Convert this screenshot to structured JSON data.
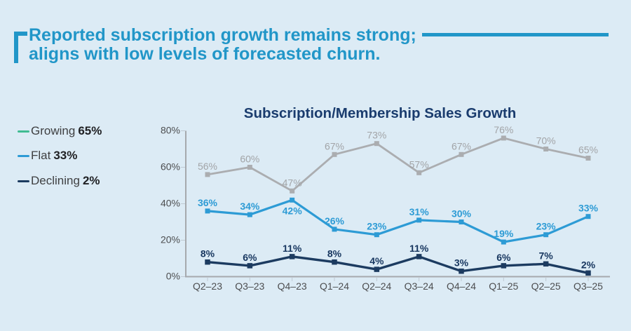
{
  "header": {
    "title_line1": "Reported subscription growth remains strong;",
    "title_line2": "aligns with low levels of forecasted churn."
  },
  "theme": {
    "background": "#dcebf5",
    "accent_blue": "#2196c8",
    "title_navy": "#1a3c6e",
    "axis_line_color": "#a6a9ad",
    "tick_color": "#bfc9d2",
    "axis_label_color": "#4d4e50",
    "legend_name_color": "#3f4042",
    "legend_value_color": "#202124"
  },
  "chart_data": {
    "type": "line",
    "title": "Subscription/Membership Sales Growth",
    "categories": [
      "Q2–23",
      "Q3–23",
      "Q4–23",
      "Q1–24",
      "Q2–24",
      "Q3–24",
      "Q4–24",
      "Q1–25",
      "Q2–25",
      "Q3–25"
    ],
    "series": [
      {
        "name": "Growing",
        "legend_value": "65%",
        "values": [
          56,
          60,
          47,
          67,
          73,
          57,
          67,
          76,
          70,
          65
        ],
        "line_color": "#abadb0",
        "label_color": "#a2a4a7",
        "legend_dash_color": "#40bc92",
        "bold_labels": false,
        "labels_below": []
      },
      {
        "name": "Flat",
        "legend_value": "33%",
        "values": [
          36,
          34,
          42,
          26,
          23,
          31,
          30,
          19,
          23,
          33
        ],
        "line_color": "#2d9bd5",
        "label_color": "#2d9bd5",
        "legend_dash_color": "#2d9bd5",
        "bold_labels": true,
        "labels_below": [
          2
        ]
      },
      {
        "name": "Declining",
        "legend_value": "2%",
        "values": [
          8,
          6,
          11,
          8,
          4,
          11,
          3,
          6,
          7,
          2
        ],
        "line_color": "#1c3b60",
        "label_color": "#17365f",
        "legend_dash_color": "#1c3b60",
        "bold_labels": true,
        "labels_below": []
      }
    ],
    "ylabel": "",
    "xlabel": "",
    "ylim": [
      0,
      80
    ],
    "yticks": [
      0,
      20,
      40,
      60,
      80
    ],
    "ytick_suffix": "%",
    "value_suffix": "%",
    "grid": false,
    "legend_position": "left"
  }
}
